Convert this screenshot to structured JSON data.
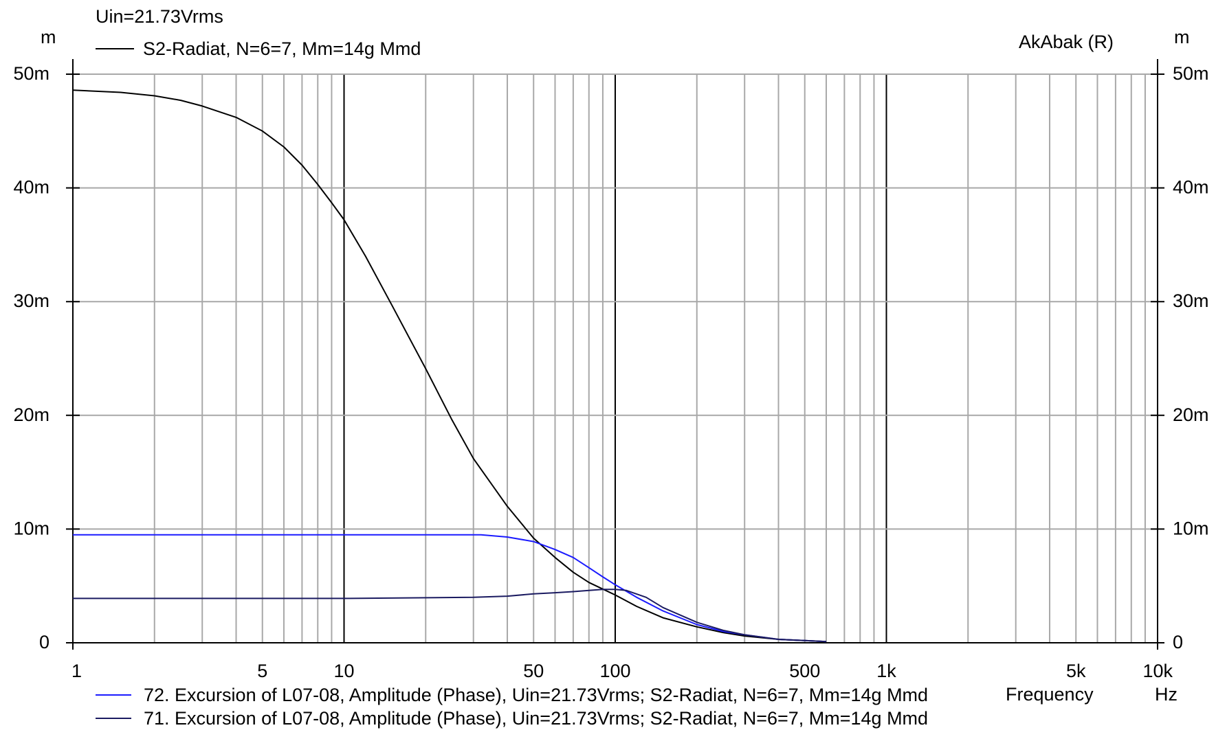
{
  "chart_data": {
    "type": "line",
    "header": {
      "uin": "Uin=21.73Vrms",
      "subtitle": "S2-Radiat, N=6=7, Mm=14g Mmd",
      "brand": "AkAbak (R)"
    },
    "y_unit_left": "m",
    "y_unit_right": "m",
    "xlabel": "Frequency",
    "x_unit": "Hz",
    "x_scale": "log",
    "xlim": [
      1,
      10000
    ],
    "ylim": [
      0,
      0.05
    ],
    "y_ticks": [
      {
        "v": 0,
        "label": "0"
      },
      {
        "v": 0.01,
        "label": "10m"
      },
      {
        "v": 0.02,
        "label": "20m"
      },
      {
        "v": 0.03,
        "label": "30m"
      },
      {
        "v": 0.04,
        "label": "40m"
      },
      {
        "v": 0.05,
        "label": "50m"
      }
    ],
    "x_ticks": [
      {
        "v": 1,
        "label": "1"
      },
      {
        "v": 5,
        "label": "5"
      },
      {
        "v": 10,
        "label": "10"
      },
      {
        "v": 50,
        "label": "50"
      },
      {
        "v": 100,
        "label": "100"
      },
      {
        "v": 500,
        "label": "500"
      },
      {
        "v": 1000,
        "label": "1k"
      },
      {
        "v": 5000,
        "label": "5k"
      },
      {
        "v": 10000,
        "label": "10k"
      }
    ],
    "grid": true,
    "series": [
      {
        "name": "S2-Radiat, N=6=7, Mm=14g Mmd",
        "color": "#000000",
        "points": [
          [
            1,
            0.0486
          ],
          [
            1.5,
            0.0484
          ],
          [
            2,
            0.0481
          ],
          [
            2.5,
            0.0477
          ],
          [
            3,
            0.0472
          ],
          [
            4,
            0.0462
          ],
          [
            5,
            0.045
          ],
          [
            6,
            0.0436
          ],
          [
            7,
            0.042
          ],
          [
            8,
            0.0403
          ],
          [
            9,
            0.0387
          ],
          [
            10,
            0.0372
          ],
          [
            12,
            0.034
          ],
          [
            15,
            0.0297
          ],
          [
            20,
            0.0241
          ],
          [
            25,
            0.0196
          ],
          [
            30,
            0.0162
          ],
          [
            40,
            0.012
          ],
          [
            50,
            0.0092
          ],
          [
            60,
            0.0075
          ],
          [
            70,
            0.0062
          ],
          [
            80,
            0.0053
          ],
          [
            100,
            0.0042
          ],
          [
            120,
            0.0032
          ],
          [
            150,
            0.0022
          ],
          [
            200,
            0.0014
          ],
          [
            250,
            0.0009
          ],
          [
            300,
            0.0006
          ],
          [
            400,
            0.0003
          ],
          [
            500,
            0.0002
          ],
          [
            600,
            0.0001
          ]
        ]
      },
      {
        "name": "72. Excursion of L07-08, Amplitude (Phase), Uin=21.73Vrms; S2-Radiat, N=6=7, Mm=14g Mmd",
        "color": "#1a1aff",
        "points": [
          [
            1,
            0.0095
          ],
          [
            10,
            0.0095
          ],
          [
            32,
            0.0095
          ],
          [
            40,
            0.0093
          ],
          [
            50,
            0.0089
          ],
          [
            60,
            0.0082
          ],
          [
            70,
            0.0075
          ],
          [
            80,
            0.0066
          ],
          [
            90,
            0.0058
          ],
          [
            100,
            0.0051
          ],
          [
            120,
            0.004
          ],
          [
            150,
            0.0028
          ],
          [
            200,
            0.0016
          ],
          [
            250,
            0.001
          ],
          [
            300,
            0.0007
          ],
          [
            400,
            0.0003
          ],
          [
            500,
            0.0002
          ],
          [
            600,
            0.0001
          ]
        ]
      },
      {
        "name": "71. Excursion of L07-08, Amplitude (Phase), Uin=21.73Vrms; S2-Radiat, N=6=7, Mm=14g Mmd",
        "color": "#1a1a60",
        "points": [
          [
            1,
            0.0039
          ],
          [
            10,
            0.0039
          ],
          [
            30,
            0.004
          ],
          [
            40,
            0.0041
          ],
          [
            50,
            0.0043
          ],
          [
            60,
            0.0044
          ],
          [
            70,
            0.0045
          ],
          [
            80,
            0.0046
          ],
          [
            90,
            0.0047
          ],
          [
            100,
            0.0047
          ],
          [
            110,
            0.0046
          ],
          [
            130,
            0.004
          ],
          [
            150,
            0.0031
          ],
          [
            200,
            0.0018
          ],
          [
            250,
            0.0011
          ],
          [
            300,
            0.0007
          ],
          [
            400,
            0.0003
          ],
          [
            500,
            0.0002
          ],
          [
            600,
            0.0001
          ]
        ]
      }
    ]
  }
}
